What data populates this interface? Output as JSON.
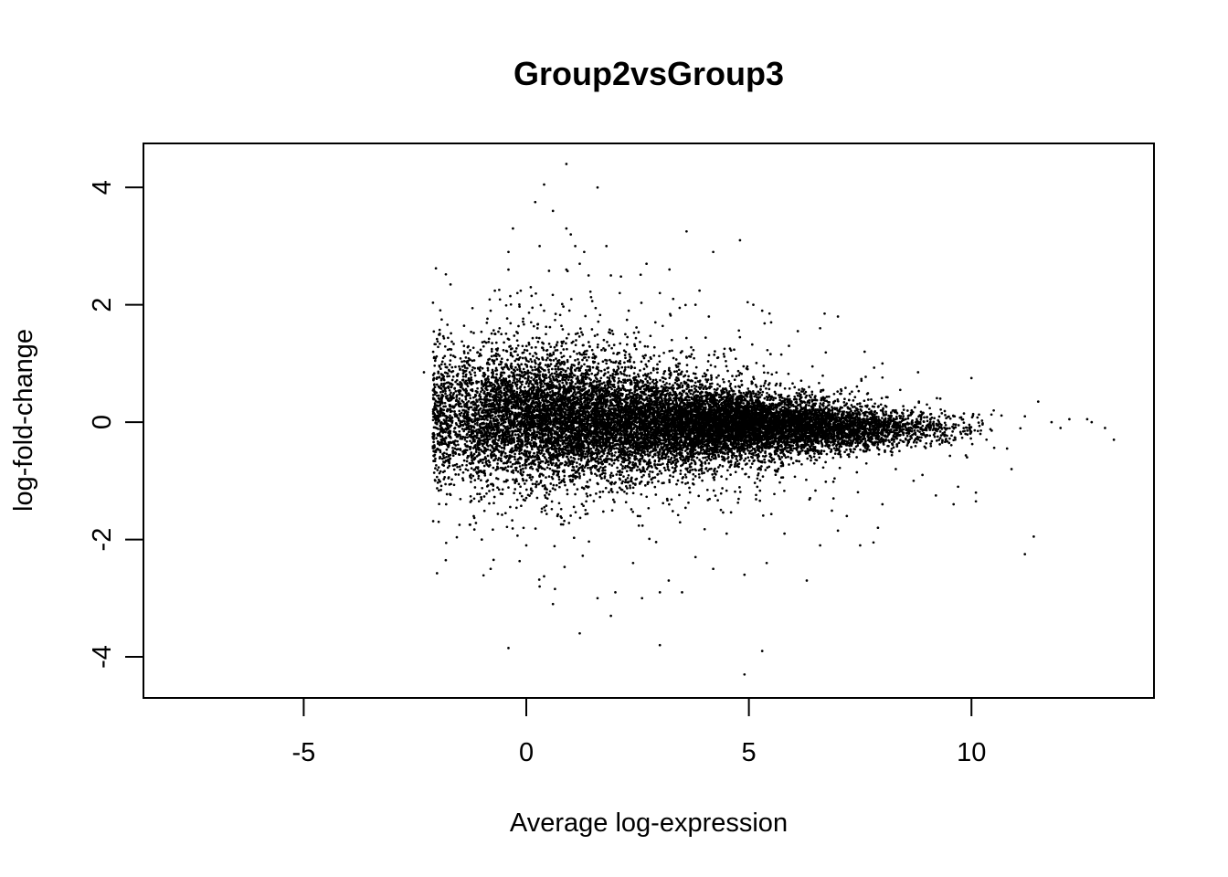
{
  "chart_data": {
    "type": "scatter",
    "title": "Group2vsGroup3",
    "xlabel": "Average log-expression",
    "ylabel": "log-fold-change",
    "xlim": [
      -8.6,
      14.1
    ],
    "ylim": [
      -4.7,
      4.75
    ],
    "x_ticks": [
      -5,
      0,
      5,
      10
    ],
    "y_ticks": [
      -4,
      -2,
      0,
      2,
      4
    ],
    "grid": false,
    "legend": "none",
    "point_color": "#000000",
    "points": [
      [
        0.9,
        4.4
      ],
      [
        0.4,
        4.05
      ],
      [
        1.6,
        4.0
      ],
      [
        0.2,
        3.75
      ],
      [
        0.6,
        3.6
      ],
      [
        0.9,
        3.3
      ],
      [
        -0.3,
        3.3
      ],
      [
        1.0,
        3.2
      ],
      [
        3.6,
        3.25
      ],
      [
        4.8,
        3.1
      ],
      [
        0.3,
        3.0
      ],
      [
        1.1,
        3.0
      ],
      [
        1.8,
        3.0
      ],
      [
        -0.4,
        2.9
      ],
      [
        4.2,
        2.9
      ],
      [
        1.3,
        2.9
      ],
      [
        2.7,
        2.7
      ],
      [
        -0.4,
        2.6
      ],
      [
        0.9,
        2.6
      ],
      [
        1.9,
        2.5
      ],
      [
        1.4,
        2.5
      ],
      [
        0.1,
        2.3
      ],
      [
        2.1,
        2.2
      ],
      [
        3.0,
        2.2
      ],
      [
        -0.2,
        2.2
      ],
      [
        3.3,
        2.1
      ],
      [
        5.1,
        2.0
      ],
      [
        5.3,
        1.9
      ],
      [
        6.7,
        1.85
      ],
      [
        7.0,
        1.8
      ],
      [
        4.1,
        1.8
      ],
      [
        2.9,
        1.7
      ],
      [
        6.1,
        1.55
      ],
      [
        6.6,
        1.6
      ],
      [
        5.5,
        1.7
      ],
      [
        7.6,
        1.2
      ],
      [
        8.0,
        1.0
      ],
      [
        8.8,
        0.85
      ],
      [
        10.0,
        0.75
      ],
      [
        9.3,
        0.4
      ],
      [
        10.5,
        0.2
      ],
      [
        11.5,
        0.35
      ],
      [
        11.2,
        0.1
      ],
      [
        11.8,
        0.0
      ],
      [
        12.2,
        0.05
      ],
      [
        12.6,
        0.05
      ],
      [
        12.7,
        0.0
      ],
      [
        13.0,
        -0.1
      ],
      [
        13.2,
        -0.3
      ],
      [
        12.0,
        -0.1
      ],
      [
        10.8,
        -0.45
      ],
      [
        10.9,
        -0.8
      ],
      [
        10.1,
        -1.2
      ],
      [
        10.1,
        -1.35
      ],
      [
        9.7,
        -1.1
      ],
      [
        9.2,
        -1.25
      ],
      [
        9.6,
        -1.4
      ],
      [
        8.7,
        -1.0
      ],
      [
        8.0,
        -1.4
      ],
      [
        7.2,
        -1.6
      ],
      [
        7.9,
        -1.8
      ],
      [
        7.0,
        -1.85
      ],
      [
        7.8,
        -2.05
      ],
      [
        11.4,
        -1.95
      ],
      [
        11.2,
        -2.25
      ],
      [
        7.5,
        -2.1
      ],
      [
        6.6,
        -2.1
      ],
      [
        6.3,
        -2.7
      ],
      [
        5.4,
        -2.4
      ],
      [
        4.9,
        -2.6
      ],
      [
        4.2,
        -2.5
      ],
      [
        3.8,
        -2.3
      ],
      [
        3.2,
        -2.7
      ],
      [
        3.0,
        -2.9
      ],
      [
        3.5,
        -2.9
      ],
      [
        2.6,
        -3.0
      ],
      [
        2.0,
        -2.9
      ],
      [
        1.6,
        -3.0
      ],
      [
        1.9,
        -3.3
      ],
      [
        0.6,
        -3.1
      ],
      [
        0.3,
        -2.8
      ],
      [
        1.2,
        -3.6
      ],
      [
        3.0,
        -3.8
      ],
      [
        5.3,
        -3.9
      ],
      [
        -0.4,
        -3.85
      ],
      [
        4.9,
        -4.3
      ],
      [
        -0.8,
        -2.5
      ],
      [
        0.0,
        -2.1
      ],
      [
        -1.0,
        -2.0
      ],
      [
        -1.5,
        -1.75
      ],
      [
        -1.8,
        -1.4
      ],
      [
        -2.3,
        0.85
      ],
      [
        -1.9,
        1.75
      ],
      [
        -1.4,
        1.3
      ],
      [
        -0.8,
        1.9
      ],
      [
        -0.6,
        1.6
      ],
      [
        0.4,
        1.9
      ],
      [
        1.2,
        2.7
      ],
      [
        2.3,
        1.9
      ],
      [
        3.8,
        2.0
      ],
      [
        5.9,
        1.3
      ],
      [
        8.4,
        0.55
      ],
      [
        9.0,
        0.3
      ],
      [
        9.6,
        0.1
      ],
      [
        10.2,
        -0.2
      ],
      [
        9.9,
        -0.6
      ],
      [
        8.9,
        -0.9
      ],
      [
        8.3,
        -0.8
      ],
      [
        6.9,
        -1.3
      ],
      [
        5.8,
        -1.9
      ],
      [
        4.5,
        -1.9
      ],
      [
        2.4,
        -2.4
      ]
    ],
    "clusters": [
      {
        "cx": 0.0,
        "cy": 0.1,
        "sx": 1.3,
        "sy": 0.55,
        "n": 3800
      },
      {
        "cx": 2.5,
        "cy": 0.0,
        "sx": 1.4,
        "sy": 0.45,
        "n": 3600
      },
      {
        "cx": 4.9,
        "cy": -0.05,
        "sx": 1.2,
        "sy": 0.35,
        "n": 4200
      },
      {
        "cx": 7.0,
        "cy": -0.1,
        "sx": 1.0,
        "sy": 0.28,
        "n": 1500
      },
      {
        "cx": 8.8,
        "cy": -0.1,
        "sx": 0.8,
        "sy": 0.25,
        "n": 260
      },
      {
        "cx": 1.2,
        "cy": 0.05,
        "sx": 1.9,
        "sy": 0.95,
        "n": 1500
      },
      {
        "cx": 4.0,
        "cy": -0.1,
        "sx": 2.0,
        "sy": 0.75,
        "n": 900
      }
    ],
    "x_min_density": -2.1
  }
}
